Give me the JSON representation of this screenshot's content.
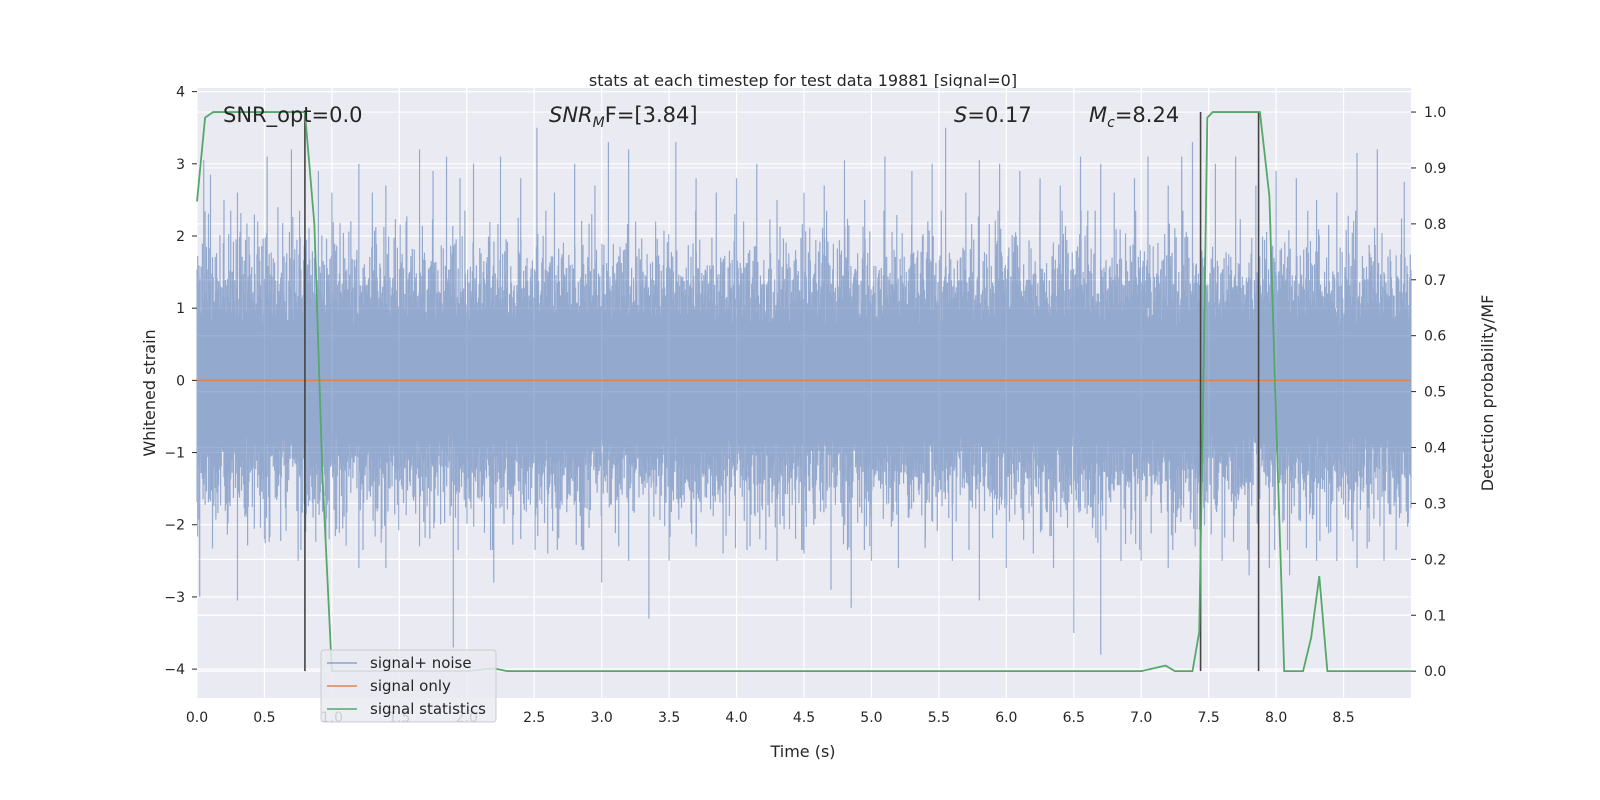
{
  "chart_data": {
    "type": "line",
    "title": "stats at each timestep for test data 19881 [signal=0]",
    "xlabel": "Time (s)",
    "ylabel": "Whitened strain",
    "y2label": "Detection probability/MF",
    "xlim": [
      0.0,
      9.0
    ],
    "ylim": [
      -4.4,
      4.05
    ],
    "y2lim": [
      -0.048,
      1.043
    ],
    "xticks": [
      "0.0",
      "0.5",
      "1.0",
      "1.5",
      "2.0",
      "2.5",
      "3.0",
      "3.5",
      "4.0",
      "4.5",
      "5.0",
      "5.5",
      "6.0",
      "6.5",
      "7.0",
      "7.5",
      "8.0",
      "8.5"
    ],
    "yticks": [
      "−4",
      "−3",
      "−2",
      "−1",
      "0",
      "1",
      "2",
      "3",
      "4"
    ],
    "y2ticks": [
      "0.0",
      "0.1",
      "0.2",
      "0.3",
      "0.4",
      "0.5",
      "0.6",
      "0.7",
      "0.8",
      "0.9",
      "1.0"
    ],
    "grid": true,
    "legend_position": "lower-left",
    "annotations": {
      "snr_opt": "SNR_opt=0.0",
      "snr_mf_prefix": "SNR",
      "snr_mf_sub": "M",
      "snr_mf_suffix": "F=[3.84]",
      "s_var": "S",
      "s_value": "=0.17",
      "mc_var": "M",
      "mc_sub": "c",
      "mc_value": "=8.24"
    },
    "series": [
      {
        "name": "signal+ noise",
        "color": "#4c72b0",
        "style": "dense noise",
        "peaks": [
          [
            0.05,
            3.05
          ],
          [
            0.1,
            2.85
          ],
          [
            0.2,
            2.5
          ],
          [
            0.3,
            2.6
          ],
          [
            0.45,
            2.2
          ],
          [
            0.52,
            3.1
          ],
          [
            0.6,
            2.4
          ],
          [
            0.7,
            3.2
          ],
          [
            0.9,
            2.9
          ],
          [
            1.0,
            2.6
          ],
          [
            1.2,
            3.0
          ],
          [
            1.3,
            2.6
          ],
          [
            1.4,
            2.7
          ],
          [
            1.55,
            2.2
          ],
          [
            1.65,
            3.2
          ],
          [
            1.75,
            2.9
          ],
          [
            1.85,
            3.1
          ],
          [
            1.95,
            2.8
          ],
          [
            2.05,
            3.0
          ],
          [
            2.25,
            3.1
          ],
          [
            2.4,
            2.8
          ],
          [
            2.52,
            3.5
          ],
          [
            2.65,
            2.6
          ],
          [
            2.8,
            3.0
          ],
          [
            2.95,
            2.7
          ],
          [
            3.05,
            3.3
          ],
          [
            3.2,
            3.2
          ],
          [
            3.4,
            2.2
          ],
          [
            3.55,
            3.3
          ],
          [
            3.7,
            2.8
          ],
          [
            3.85,
            2.6
          ],
          [
            4.0,
            2.8
          ],
          [
            4.15,
            3.0
          ],
          [
            4.3,
            2.5
          ],
          [
            4.5,
            2.6
          ],
          [
            4.65,
            2.7
          ],
          [
            4.8,
            3.05
          ],
          [
            4.95,
            2.5
          ],
          [
            5.1,
            3.1
          ],
          [
            5.3,
            2.9
          ],
          [
            5.45,
            3.0
          ],
          [
            5.55,
            3.5
          ],
          [
            5.7,
            2.6
          ],
          [
            5.8,
            3.05
          ],
          [
            5.95,
            3.0
          ],
          [
            6.1,
            2.9
          ],
          [
            6.25,
            2.8
          ],
          [
            6.4,
            2.7
          ],
          [
            6.55,
            3.1
          ],
          [
            6.7,
            3.0
          ],
          [
            6.8,
            2.6
          ],
          [
            6.95,
            2.8
          ],
          [
            7.05,
            3.1
          ],
          [
            7.2,
            2.7
          ],
          [
            7.3,
            3.1
          ],
          [
            7.38,
            3.3
          ],
          [
            7.55,
            3.0
          ],
          [
            7.7,
            3.1
          ],
          [
            7.85,
            2.7
          ],
          [
            8.0,
            2.9
          ],
          [
            8.15,
            2.8
          ],
          [
            8.3,
            2.5
          ],
          [
            8.45,
            2.6
          ],
          [
            8.6,
            3.15
          ],
          [
            8.75,
            3.2
          ],
          [
            8.95,
            2.75
          ]
        ],
        "troughs": [
          [
            0.02,
            -3.0
          ],
          [
            0.3,
            -3.05
          ],
          [
            0.5,
            -2.2
          ],
          [
            0.75,
            -2.5
          ],
          [
            0.98,
            -2.2
          ],
          [
            1.2,
            -2.6
          ],
          [
            1.4,
            -2.6
          ],
          [
            1.65,
            -2.3
          ],
          [
            1.9,
            -3.7
          ],
          [
            2.2,
            -2.8
          ],
          [
            2.4,
            -2.2
          ],
          [
            2.6,
            -2.4
          ],
          [
            2.85,
            -2.3
          ],
          [
            3.0,
            -2.8
          ],
          [
            3.2,
            -2.5
          ],
          [
            3.35,
            -3.3
          ],
          [
            3.5,
            -2.5
          ],
          [
            3.7,
            -2.3
          ],
          [
            3.9,
            -2.4
          ],
          [
            4.1,
            -2.3
          ],
          [
            4.3,
            -2.5
          ],
          [
            4.5,
            -2.4
          ],
          [
            4.7,
            -2.9
          ],
          [
            4.85,
            -3.15
          ],
          [
            5.0,
            -2.5
          ],
          [
            5.2,
            -2.6
          ],
          [
            5.4,
            -2.2
          ],
          [
            5.6,
            -2.5
          ],
          [
            5.8,
            -3.05
          ],
          [
            6.0,
            -2.6
          ],
          [
            6.2,
            -2.4
          ],
          [
            6.35,
            -2.6
          ],
          [
            6.5,
            -3.5
          ],
          [
            6.7,
            -3.8
          ],
          [
            6.85,
            -2.5
          ],
          [
            7.0,
            -2.5
          ],
          [
            7.2,
            -2.6
          ],
          [
            7.4,
            -2.3
          ],
          [
            7.6,
            -2.5
          ],
          [
            7.8,
            -2.7
          ],
          [
            7.95,
            -2.6
          ],
          [
            8.1,
            -2.7
          ],
          [
            8.3,
            -2.5
          ],
          [
            8.45,
            -2.5
          ],
          [
            8.6,
            -2.6
          ],
          [
            8.8,
            -2.5
          ]
        ]
      },
      {
        "name": "signal only",
        "color": "#dd8452",
        "x": [
          0.0,
          9.0
        ],
        "y": [
          0.0,
          0.0
        ]
      },
      {
        "name": "signal statistics",
        "color": "#55a868",
        "x": [
          0.0,
          0.06,
          0.12,
          0.25,
          0.5,
          0.75,
          0.8,
          0.87,
          0.93,
          1.0,
          1.2,
          2.0,
          2.2,
          2.3,
          7.0,
          7.18,
          7.25,
          7.38,
          7.43,
          7.46,
          7.49,
          7.53,
          7.6,
          7.7,
          7.88,
          7.95,
          8.0,
          8.06,
          8.2,
          8.26,
          8.32,
          8.38,
          8.45,
          9.0
        ],
        "y": [
          0.84,
          0.99,
          1.0,
          1.0,
          1.0,
          1.0,
          1.0,
          0.8,
          0.35,
          0.0,
          0.0,
          0.0,
          0.005,
          0.0,
          0.0,
          0.01,
          0.0,
          0.0,
          0.07,
          0.5,
          0.99,
          1.0,
          1.0,
          1.0,
          1.0,
          0.85,
          0.45,
          0.0,
          0.0,
          0.06,
          0.17,
          0.0,
          0.0,
          0.0
        ]
      }
    ],
    "vlines": [
      0.8,
      7.44,
      7.87
    ]
  }
}
